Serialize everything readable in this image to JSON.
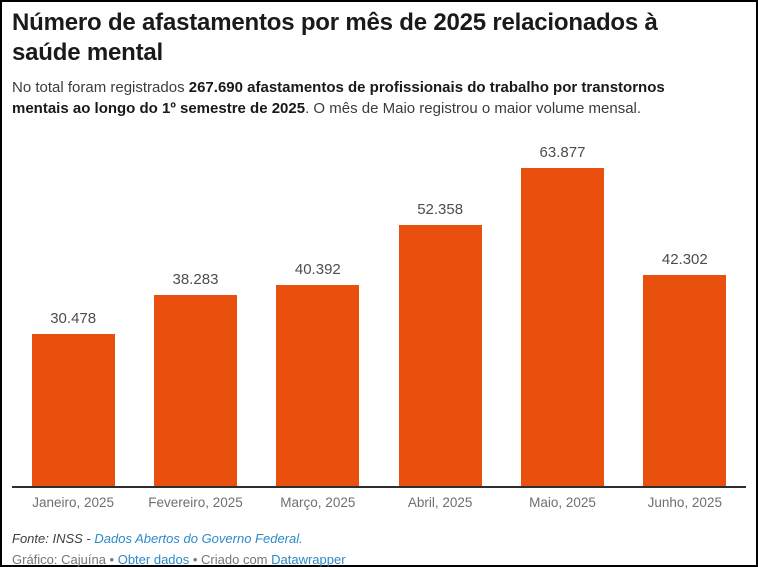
{
  "header": {
    "title": "Número de afastamentos por mês de 2025 relacionados à saúde mental",
    "description": {
      "prefix": "No total foram registrados ",
      "bold": "267.690 afastamentos de profissionais do trabalho por transtornos mentais ao longo do 1º semestre de 2025",
      "suffix": ". O mês de Maio registrou o maior volume mensal."
    }
  },
  "chart_data": {
    "type": "bar",
    "title": "Número de afastamentos por mês de 2025 relacionados à saúde mental",
    "categories": [
      "Janeiro, 2025",
      "Fevereiro, 2025",
      "Março, 2025",
      "Abril, 2025",
      "Maio, 2025",
      "Junho, 2025"
    ],
    "values": [
      30478,
      38283,
      40392,
      52358,
      63877,
      42302
    ],
    "value_labels": [
      "30.478",
      "38.283",
      "40.392",
      "52.358",
      "63.877",
      "42.302"
    ],
    "xlabel": "",
    "ylabel": "",
    "ylim": [
      0,
      63877
    ],
    "grid": false,
    "legend": "none",
    "bar_color": "#e9500e"
  },
  "footer": {
    "source": {
      "prefix": "Fonte: INSS - ",
      "link": "Dados Abertos do Governo Federal."
    },
    "byline": {
      "prefix": "Gráfico: Cajuína • ",
      "link_data": "Obter dados",
      "middle": " • Criado com ",
      "link_tool": "Datawrapper"
    }
  },
  "colors": {
    "bar": "#e9500e",
    "link": "#2d8ac9",
    "value_label": "#4d4d4d",
    "axis_label": "#6f6f6f",
    "axis_line": "#2e2e2e"
  }
}
